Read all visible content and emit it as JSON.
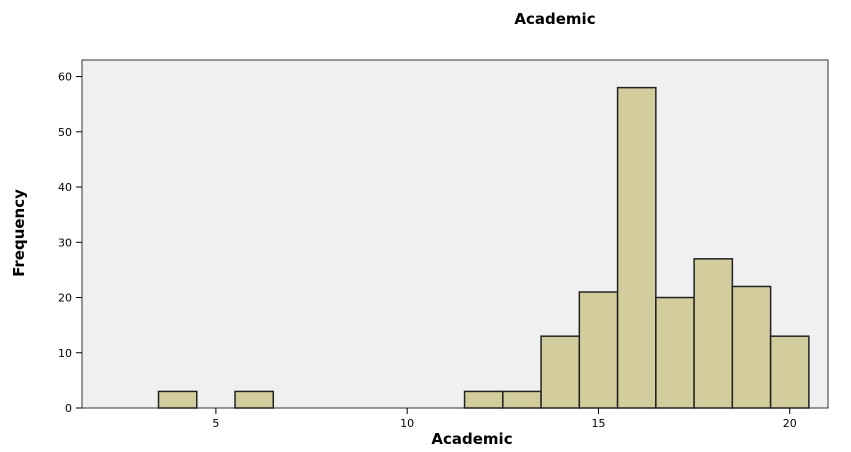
{
  "chart_data": {
    "type": "bar",
    "title": "Academic",
    "xlabel": "Academic",
    "ylabel": "Frequency",
    "xlim": [
      1.5,
      21
    ],
    "ylim": [
      0,
      63
    ],
    "bin_width": 1,
    "bins": [
      {
        "start": 3.5,
        "end": 4.5,
        "value": 3
      },
      {
        "start": 5.5,
        "end": 6.5,
        "value": 3
      },
      {
        "start": 11.5,
        "end": 12.5,
        "value": 3
      },
      {
        "start": 12.5,
        "end": 13.5,
        "value": 3
      },
      {
        "start": 13.5,
        "end": 14.5,
        "value": 13
      },
      {
        "start": 14.5,
        "end": 15.5,
        "value": 21
      },
      {
        "start": 15.5,
        "end": 16.5,
        "value": 58
      },
      {
        "start": 16.5,
        "end": 17.5,
        "value": 20
      },
      {
        "start": 17.5,
        "end": 18.5,
        "value": 27
      },
      {
        "start": 18.5,
        "end": 19.5,
        "value": 22
      },
      {
        "start": 19.5,
        "end": 20.5,
        "value": 13
      }
    ],
    "x_ticks": [
      "5",
      "10",
      "15",
      "20"
    ],
    "y_ticks": [
      "0",
      "10",
      "20",
      "30",
      "40",
      "50",
      "60"
    ],
    "grid": false,
    "colors": {
      "bar_fill": "#d3cd9d",
      "bar_stroke": "#222222",
      "plot_bg": "#f0f0f0"
    }
  }
}
